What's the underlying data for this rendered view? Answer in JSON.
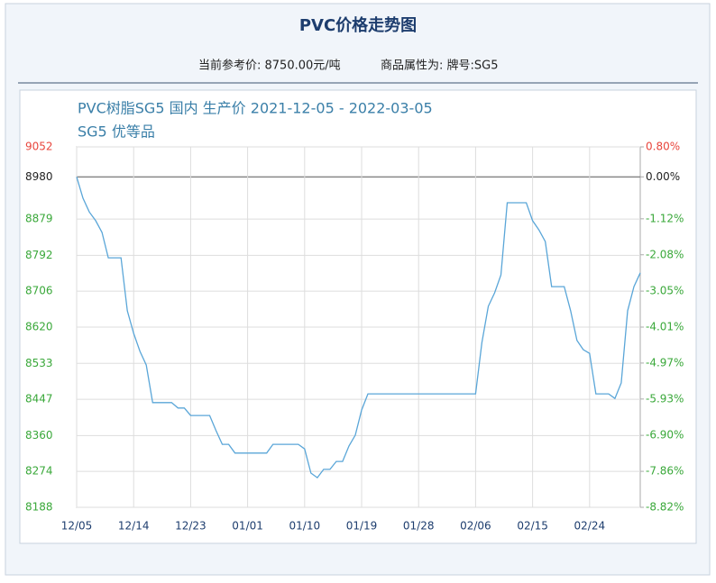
{
  "header": {
    "title": "PVC价格走势图",
    "reference_price": "当前参考价: 8750.00元/吨",
    "attribute": "商品属性为: 牌号:SG5"
  },
  "chart_data": {
    "type": "line",
    "title": "PVC树脂SG5 国内 生产价 2021-12-05 - 2022-03-05",
    "subtitle": "SG5 优等品",
    "categories": [
      "12/05",
      null,
      null,
      null,
      null,
      null,
      null,
      null,
      null,
      "12/14",
      null,
      null,
      null,
      null,
      null,
      null,
      null,
      null,
      "12/23",
      null,
      null,
      null,
      null,
      null,
      null,
      null,
      null,
      "01/01",
      null,
      null,
      null,
      null,
      null,
      null,
      null,
      null,
      "01/10",
      null,
      null,
      null,
      null,
      null,
      null,
      null,
      null,
      "01/19",
      null,
      null,
      null,
      null,
      null,
      null,
      null,
      null,
      "01/28",
      null,
      null,
      null,
      null,
      null,
      null,
      null,
      null,
      "02/06",
      null,
      null,
      null,
      null,
      null,
      null,
      null,
      null,
      "02/15",
      null,
      null,
      null,
      null,
      null,
      null,
      null,
      null,
      "02/24",
      null,
      null,
      null,
      null,
      null,
      null,
      null,
      null
    ],
    "series": [
      {
        "name": "SG5 优等品",
        "color": "#5aa6d8",
        "values": [
          8980,
          8929,
          8896,
          8875,
          8847,
          8786,
          8786,
          8786,
          8659,
          8605,
          8562,
          8529,
          8439,
          8439,
          8439,
          8439,
          8426,
          8426,
          8408,
          8408,
          8408,
          8408,
          8372,
          8339,
          8339,
          8318,
          8318,
          8318,
          8318,
          8318,
          8318,
          8339,
          8339,
          8339,
          8339,
          8339,
          8328,
          8270,
          8259,
          8279,
          8279,
          8298,
          8298,
          8335,
          8361,
          8421,
          8460,
          8460,
          8460,
          8460,
          8460,
          8460,
          8460,
          8460,
          8460,
          8460,
          8460,
          8460,
          8460,
          8460,
          8460,
          8460,
          8460,
          8460,
          8583,
          8670,
          8702,
          8745,
          8918,
          8918,
          8918,
          8918,
          8875,
          8853,
          8825,
          8717,
          8717,
          8717,
          8659,
          8588,
          8566,
          8557,
          8460,
          8460,
          8460,
          8449,
          8486,
          8659,
          8717,
          8750
        ]
      }
    ],
    "ylim": [
      8188,
      9052
    ],
    "yticks": [
      9052,
      8980,
      8879,
      8792,
      8706,
      8620,
      8533,
      8447,
      8360,
      8274,
      8188
    ],
    "y2lim": [
      -8.82,
      0.8
    ],
    "y2ticks": [
      {
        "value": 0.8,
        "label": "0.80%"
      },
      {
        "value": 0,
        "label": "0.00%"
      },
      {
        "value": -1.12,
        "label": "-1.12%"
      },
      {
        "value": -2.08,
        "label": "-2.08%"
      },
      {
        "value": -3.05,
        "label": "-3.05%"
      },
      {
        "value": -4.01,
        "label": "-4.01%"
      },
      {
        "value": -4.97,
        "label": "-4.97%"
      },
      {
        "value": -5.93,
        "label": "-5.93%"
      },
      {
        "value": -6.9,
        "label": "-6.90%"
      },
      {
        "value": -7.86,
        "label": "-7.86%"
      },
      {
        "value": -8.82,
        "label": "-8.82%"
      }
    ],
    "grid": true,
    "up_color": "#e8453c",
    "down_color": "#3aa83a",
    "flat_color": "#222222"
  }
}
